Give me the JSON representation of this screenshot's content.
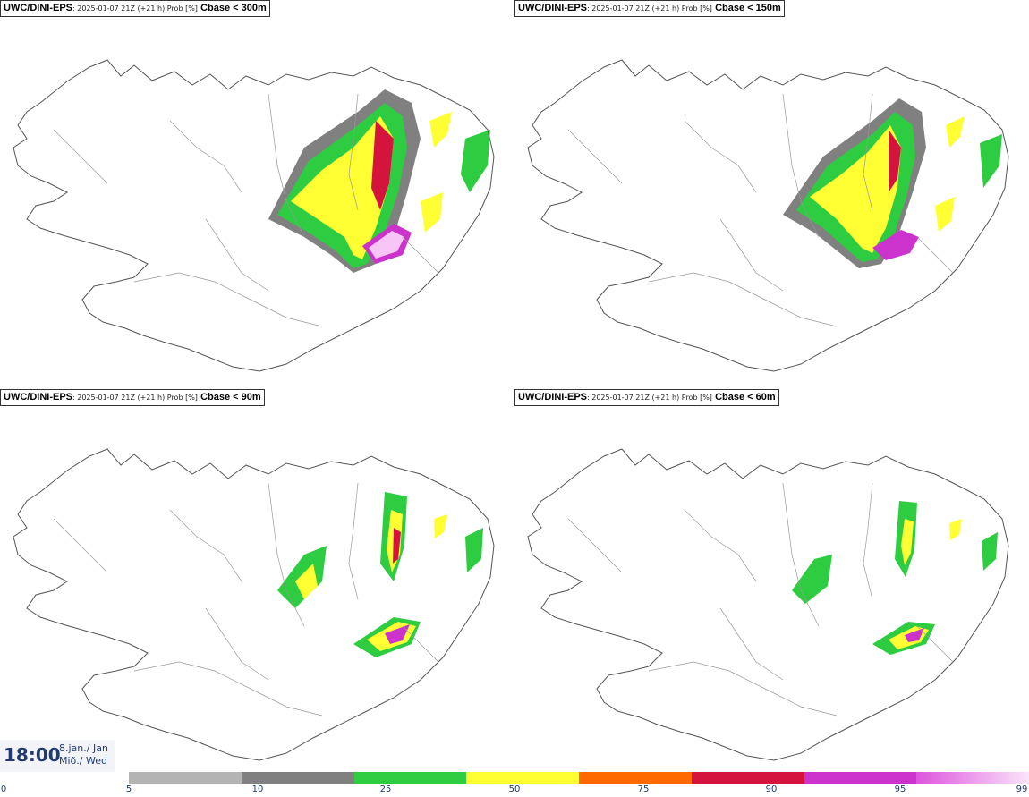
{
  "panels": [
    {
      "model": "UWC/DINI-EPS",
      "meta": ": 2025-01-07 21Z (+21 h) Prob [%]",
      "param": "Cbase < 300m"
    },
    {
      "model": "UWC/DINI-EPS",
      "meta": ": 2025-01-07 21Z (+21 h) Prob [%]",
      "param": "Cbase < 150m"
    },
    {
      "model": "UWC/DINI-EPS",
      "meta": ": 2025-01-07 21Z (+21 h) Prob [%]",
      "param": "Cbase < 90m"
    },
    {
      "model": "UWC/DINI-EPS",
      "meta": ": 2025-01-07 21Z (+21 h) Prob [%]",
      "param": "Cbase < 60m"
    }
  ],
  "valid_time": {
    "time": "18:00",
    "date_line1": "8.jan./ Jan",
    "date_line2": "Mið./ Wed"
  },
  "legend": {
    "ticks": [
      "0",
      "5",
      "10",
      "25",
      "50",
      "75",
      "90",
      "95",
      "99"
    ],
    "colors": [
      "#b4b4b4",
      "#808080",
      "#2ecc40",
      "#ffff33",
      "#ff6a00",
      "#d4143c",
      "#cc33cc",
      "#f7c6f7"
    ],
    "tick_color": "#1f3b72"
  },
  "map": {
    "outline_color": "#555555",
    "background": "#ffffff"
  }
}
